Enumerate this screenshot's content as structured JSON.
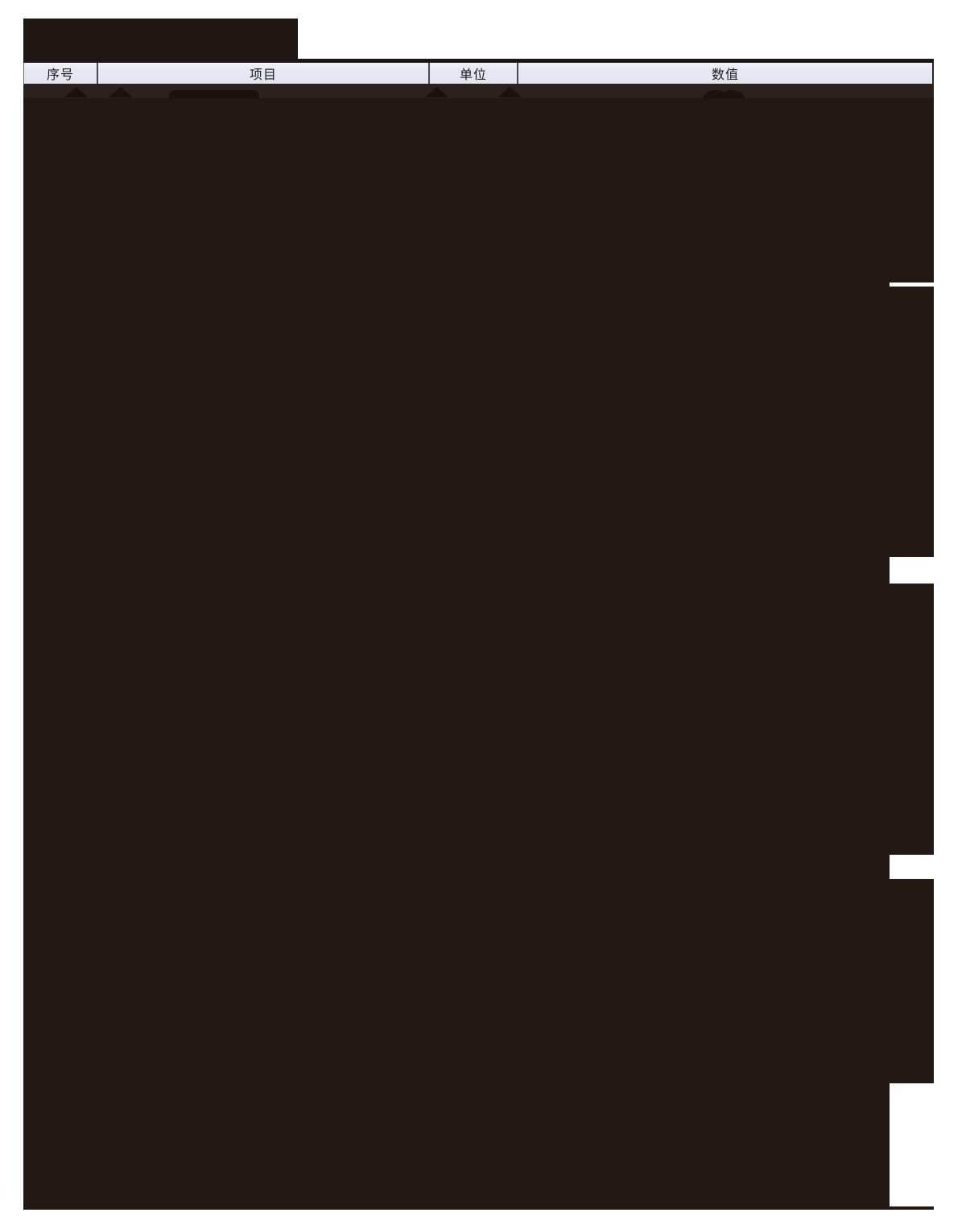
{
  "document": {
    "type": "redacted-scanned-table",
    "table": {
      "headers": [
        "序号",
        "项目",
        "单位",
        "数值"
      ]
    },
    "colors": {
      "redaction": "#231814",
      "redaction_band": "#2b211d",
      "header_background": "#e6e9f3",
      "page_background": "#ffffff"
    }
  }
}
